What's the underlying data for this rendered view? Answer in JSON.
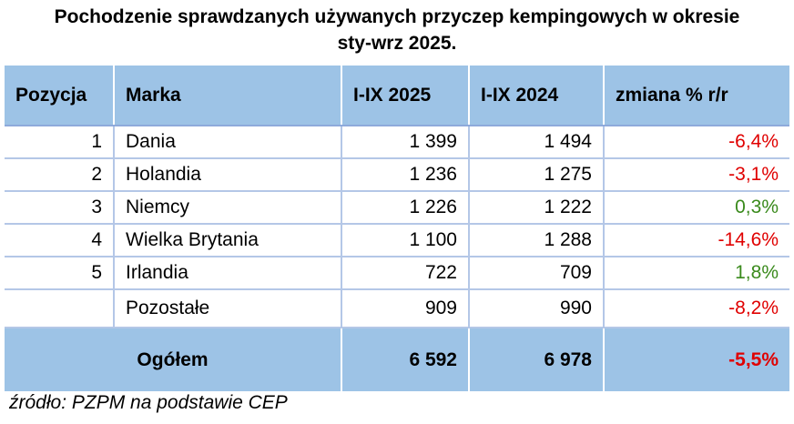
{
  "title_line1": "Pochodzenie sprawdzanych używanych przyczep kempingowych w okresie",
  "title_line2": "sty-wrz 2025.",
  "headers": {
    "position": "Pozycja",
    "brand": "Marka",
    "col_2025": "I-IX 2025",
    "col_2024": "I-IX 2024",
    "change": "zmiana % r/r"
  },
  "rows": [
    {
      "pos": "1",
      "name": "Dania",
      "v2025": "1 399",
      "v2024": "1 494",
      "change": "-6,4%"
    },
    {
      "pos": "2",
      "name": "Holandia",
      "v2025": "1 236",
      "v2024": "1 275",
      "change": "-3,1%"
    },
    {
      "pos": "3",
      "name": "Niemcy",
      "v2025": "1 226",
      "v2024": "1 222",
      "change": "0,3%"
    },
    {
      "pos": "4",
      "name": "Wielka Brytania",
      "v2025": "1 100",
      "v2024": "1 288",
      "change": "-14,6%"
    },
    {
      "pos": "5",
      "name": "Irlandia",
      "v2025": "722",
      "v2024": "709",
      "change": "1,8%"
    }
  ],
  "other": {
    "name": "Pozostałe",
    "v2025": "909",
    "v2024": "990",
    "change": "-8,2%"
  },
  "total": {
    "label": "Ogółem",
    "v2025": "6 592",
    "v2024": "6 978",
    "change": "-5,5%"
  },
  "source": "źródło: PZPM na podstawie CEP",
  "colors": {
    "header_bg": "#9dc3e6",
    "negative": "#e00000",
    "positive": "#3a8a1c",
    "row_border": "#b4c7e7"
  }
}
